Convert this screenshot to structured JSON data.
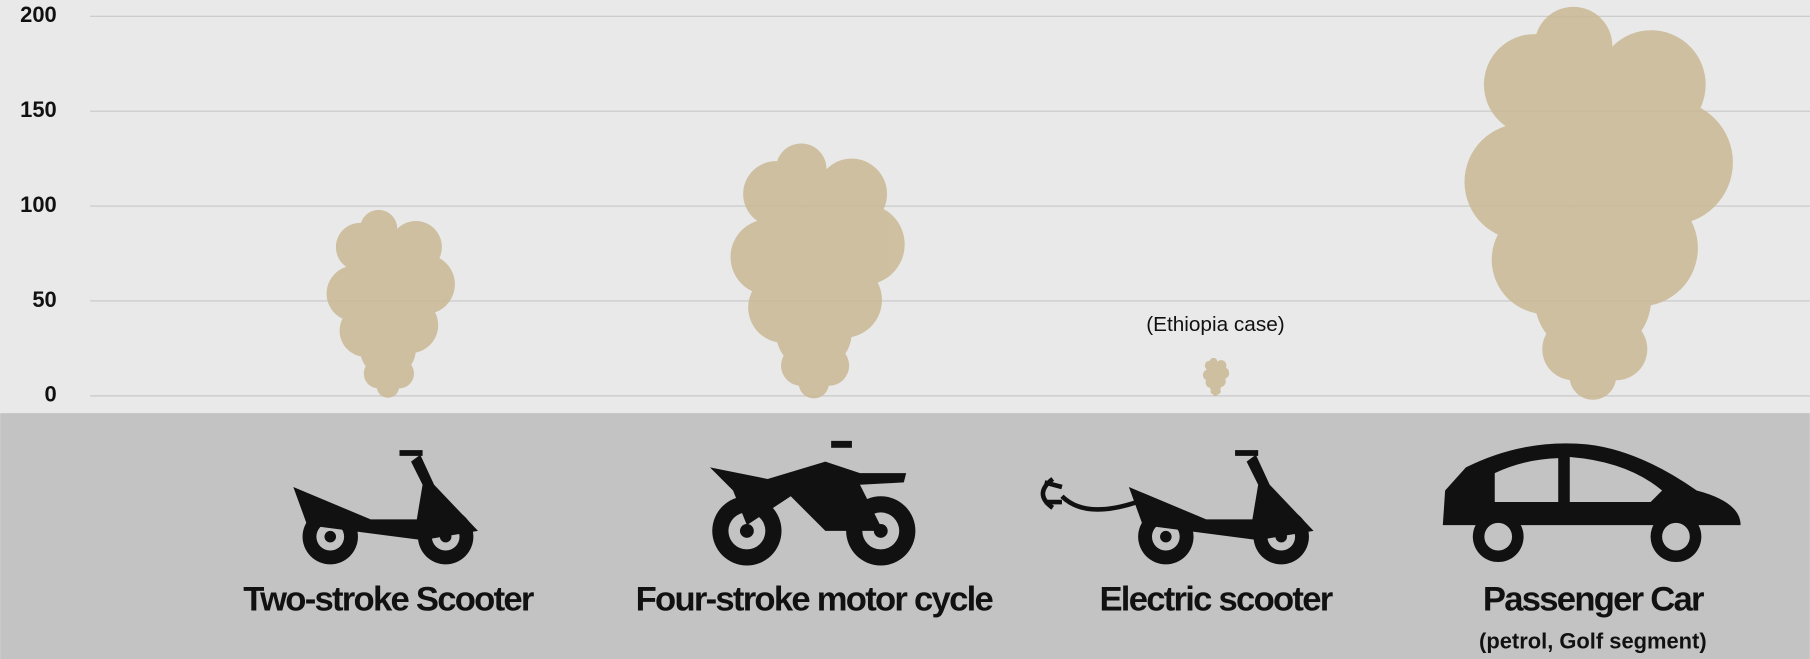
{
  "chart_data": {
    "type": "pictogram-bar",
    "categories": [
      "Two-stroke Scooter",
      "Four-stroke motor cycle",
      "Electric scooter",
      "Passenger Car"
    ],
    "category_sublabels": [
      null,
      null,
      null,
      "(petrol, Golf segment)"
    ],
    "annotations": [
      null,
      null,
      "(Ethiopia case)",
      null
    ],
    "values": [
      98,
      133,
      20,
      205
    ],
    "color": "#c9b893",
    "ylim": [
      0,
      208
    ],
    "yticks": [
      0,
      50,
      100,
      150,
      200
    ],
    "grid": true
  }
}
